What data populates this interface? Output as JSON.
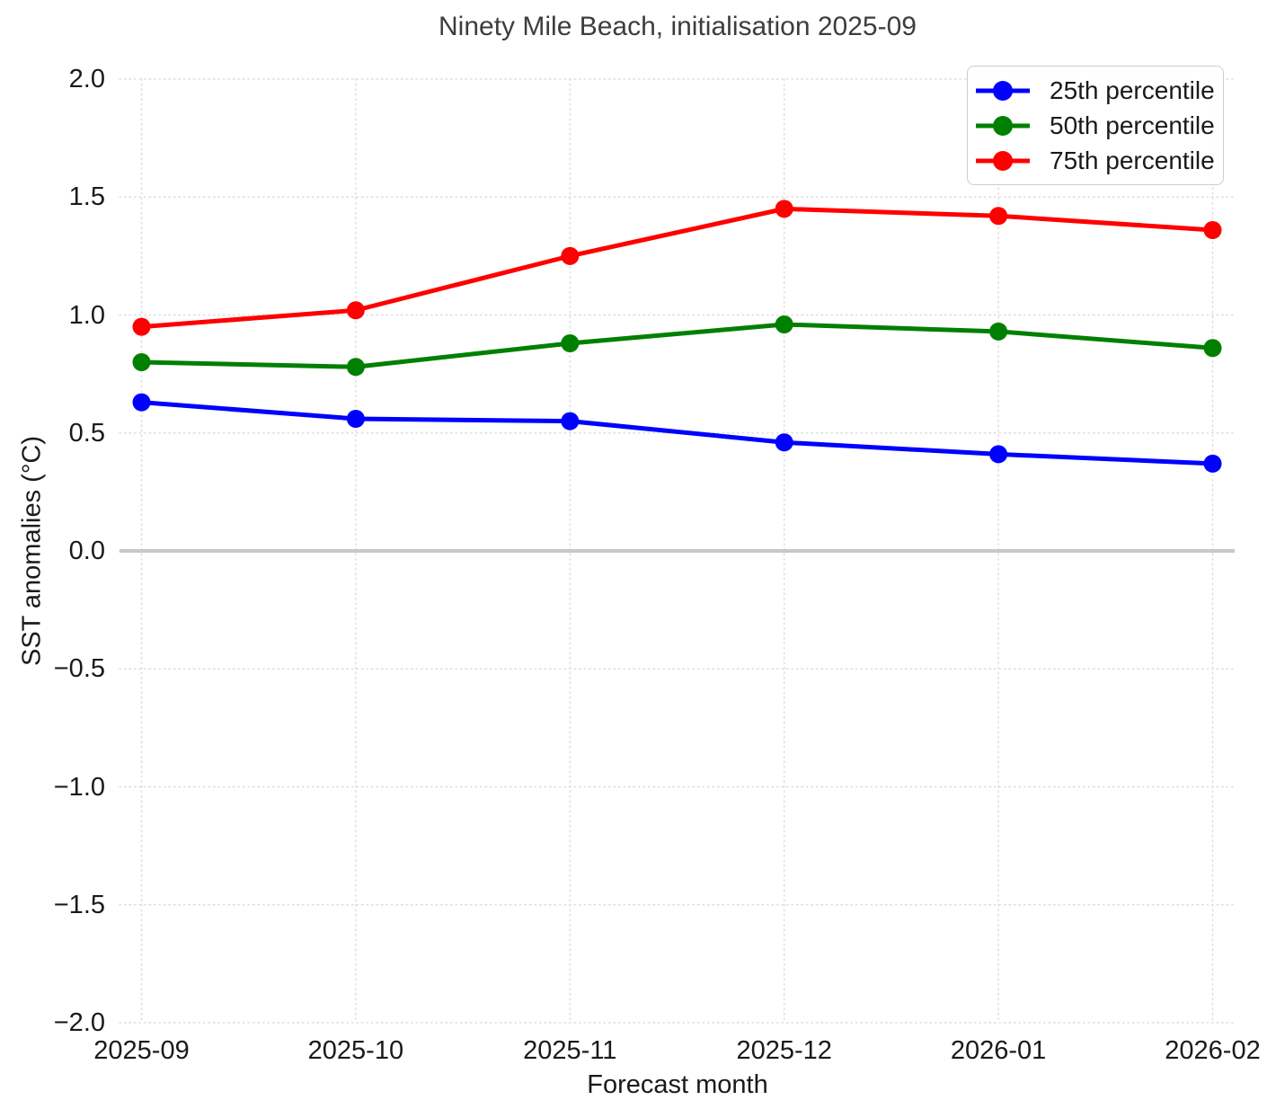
{
  "chart_data": {
    "type": "line",
    "title": "Ninety Mile Beach, initialisation 2025-09",
    "xlabel": "Forecast month",
    "ylabel": "SST anomalies (°C)",
    "categories": [
      "2025-09",
      "2025-10",
      "2025-11",
      "2025-12",
      "2026-01",
      "2026-02"
    ],
    "series": [
      {
        "name": "25th percentile",
        "color": "#0000ff",
        "values": [
          0.63,
          0.56,
          0.55,
          0.46,
          0.41,
          0.37
        ]
      },
      {
        "name": "50th percentile",
        "color": "#008000",
        "values": [
          0.8,
          0.78,
          0.88,
          0.96,
          0.93,
          0.86
        ]
      },
      {
        "name": "75th percentile",
        "color": "#ff0000",
        "values": [
          0.95,
          1.02,
          1.25,
          1.45,
          1.42,
          1.36
        ]
      }
    ],
    "ylim": [
      -2.0,
      2.0
    ],
    "yticks": [
      2.0,
      1.5,
      1.0,
      0.5,
      0.0,
      -0.5,
      -1.0,
      -1.5,
      -2.0
    ],
    "ytick_labels": [
      "2.0",
      "1.5",
      "1.0",
      "0.5",
      "0.0",
      "−0.5",
      "−1.0",
      "−1.5",
      "−2.0"
    ],
    "grid": true,
    "grid_style": "dotted",
    "legend_position": "upper right",
    "zero_line": {
      "value": 0.0,
      "color": "#c8c8c8"
    },
    "colors": {
      "title_text": "#3d3d3d",
      "tick_text": "#1a1a1a",
      "grid": "#dedede",
      "background": "#ffffff"
    }
  }
}
